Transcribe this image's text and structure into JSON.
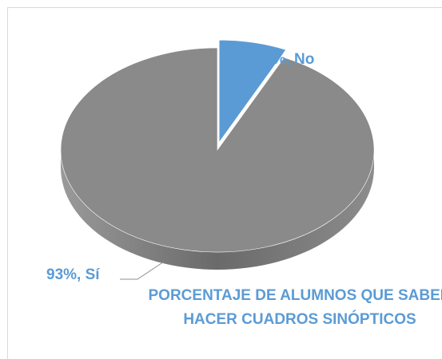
{
  "chart_data": {
    "type": "pie",
    "title": "PORCENTAJE DE ALUMNOS QUE SABEN HACER CUADROS SINÓPTICOS",
    "categories": [
      "No",
      "Sí"
    ],
    "values": [
      7,
      93
    ],
    "value_labels": [
      "7%, No",
      "93%, Sí"
    ],
    "colors": [
      "#5b9bd5",
      "#8a8a8a"
    ],
    "explode": [
      true,
      false
    ]
  }
}
